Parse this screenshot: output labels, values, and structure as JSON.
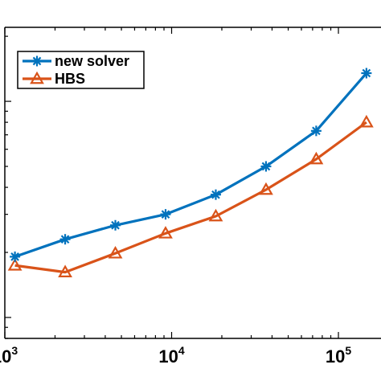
{
  "chart_data": {
    "type": "line",
    "xscale": "log",
    "yscale": "log",
    "xlim": [
      1000,
      180000
    ],
    "ylim": [
      0.8,
      22
    ],
    "x_ticks": [
      {
        "value": 1000,
        "base": "10",
        "exp": "3"
      },
      {
        "value": 10000,
        "base": "10",
        "exp": "4"
      },
      {
        "value": 100000,
        "base": "10",
        "exp": "5"
      }
    ],
    "grid": false,
    "legend_position": "top-left",
    "series": [
      {
        "name": "new solver",
        "color": "#0072BD",
        "marker": "asterisk",
        "x": [
          1150,
          2300,
          4600,
          9200,
          18400,
          36800,
          73600,
          147200
        ],
        "y": [
          1.91,
          2.3,
          2.67,
          3.0,
          3.7,
          5.0,
          7.3,
          13.5
        ]
      },
      {
        "name": "HBS",
        "color": "#D95319",
        "marker": "triangle",
        "x": [
          1150,
          2300,
          4600,
          9200,
          18400,
          36800,
          73600,
          147200
        ],
        "y": [
          1.74,
          1.62,
          1.98,
          2.45,
          2.94,
          3.9,
          5.4,
          8.0
        ]
      }
    ]
  }
}
